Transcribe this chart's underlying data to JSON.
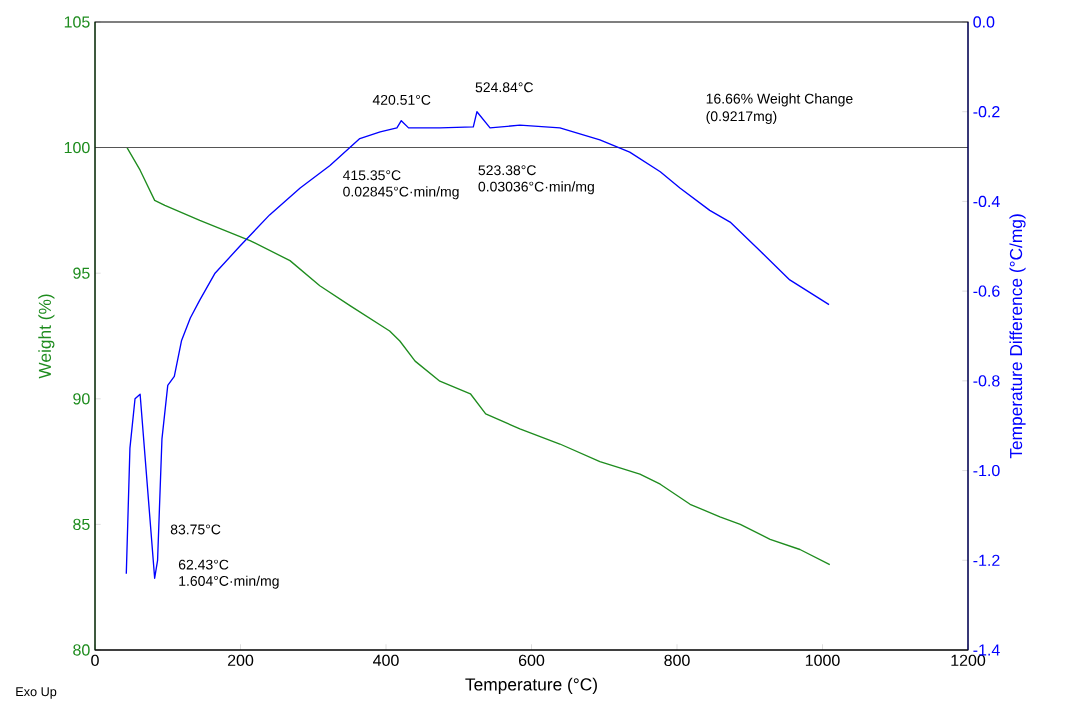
{
  "chart_data": {
    "type": "line",
    "xlabel": "Temperature (°C)",
    "ylabel": "Weight (%)",
    "y2label": "Temperature Difference (°C/mg)",
    "series": [
      {
        "color": "#1e8c1e",
        "x": [
          44,
          62,
          82,
          96,
          144,
          213,
          268,
          309,
          351,
          405,
          419,
          440,
          474,
          516,
          537,
          584,
          639,
          694,
          749,
          777,
          818,
          859,
          887,
          928,
          969,
          1010
        ],
        "values": [
          100.0,
          99.1,
          97.9,
          97.7,
          97.1,
          96.3,
          95.5,
          94.5,
          93.7,
          92.7,
          92.3,
          91.5,
          90.7,
          90.2,
          89.4,
          88.8,
          88.2,
          87.5,
          87.0,
          86.6,
          85.8,
          85.3,
          85.0,
          84.4,
          84.0,
          83.4
        ]
      },
      {
        "color": "#0000ff",
        "axis": "y2",
        "x": [
          43,
          48,
          55,
          62,
          82,
          86,
          92,
          100,
          109,
          119,
          131,
          144,
          165,
          199,
          240,
          282,
          323,
          364,
          392,
          415,
          421,
          431,
          474,
          520,
          525,
          543,
          584,
          639,
          694,
          735,
          777,
          804,
          845,
          873,
          914,
          955,
          1009
        ],
        "values": [
          -1.23,
          -0.95,
          -0.84,
          -0.83,
          -1.24,
          -1.2,
          -0.93,
          -0.81,
          -0.79,
          -0.71,
          -0.66,
          -0.62,
          -0.56,
          -0.5,
          -0.43,
          -0.37,
          -0.32,
          -0.26,
          -0.245,
          -0.236,
          -0.22,
          -0.236,
          -0.236,
          -0.234,
          -0.2,
          -0.236,
          -0.23,
          -0.236,
          -0.263,
          -0.29,
          -0.334,
          -0.37,
          -0.42,
          -0.446,
          -0.51,
          -0.575,
          -0.63
        ]
      }
    ],
    "xlim": [
      0,
      1200
    ],
    "xticks": [
      0,
      200,
      400,
      600,
      800,
      1000,
      1200
    ],
    "ylim": [
      80,
      105
    ],
    "yticks": [
      80,
      85,
      90,
      95,
      100,
      105
    ],
    "y2lim": [
      -1.4,
      0
    ],
    "y2ticks": [
      {
        "value": -1.4,
        "label": "-1.4"
      },
      {
        "value": -1.2,
        "label": "-1.2"
      },
      {
        "value": -1.0,
        "label": "-1.0"
      },
      {
        "value": -0.8,
        "label": "-0.8"
      },
      {
        "value": -0.6,
        "label": "-0.6"
      },
      {
        "value": -0.4,
        "label": "-0.4"
      },
      {
        "value": -0.2,
        "label": "-0.2"
      },
      {
        "value": 0,
        "label": "0.0"
      }
    ],
    "ref_lines": [
      {
        "axis": "y",
        "value": 100,
        "color": "#555555"
      }
    ],
    "annotations": [
      "Exo Up",
      "83.75°C",
      "62.43°C",
      "1.604°C·min/mg",
      "415.35°C",
      "0.02845°C·min/mg",
      "420.51°C",
      "524.84°C",
      "523.38°C",
      "0.03036°C·min/mg",
      "16.66% Weight Change",
      "(0.9217mg)"
    ],
    "grid": false,
    "marker": "none",
    "line_style": "solid"
  }
}
